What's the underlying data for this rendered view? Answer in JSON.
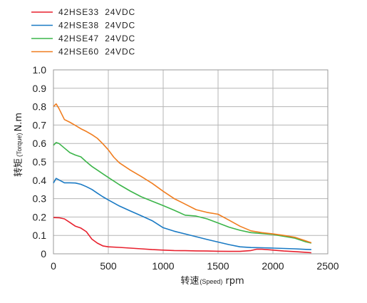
{
  "chart_data": {
    "type": "line",
    "xlabel": {
      "main": "转速",
      "sub": "(Speed)",
      "unit": "rpm"
    },
    "ylabel": {
      "main": "转矩",
      "sub": "(Torque)",
      "unit": "N.m"
    },
    "xlim": [
      0,
      2500
    ],
    "ylim": [
      0,
      1.0
    ],
    "xticks": [
      "0",
      "500",
      "1000",
      "1500",
      "2000",
      "2500"
    ],
    "xtick_values": [
      0,
      500,
      1000,
      1500,
      2000,
      2500
    ],
    "yticks": [
      "0",
      "0.1",
      "0.2",
      "0.3",
      "0.4",
      "0.5",
      "0.6",
      "0.7",
      "0.8",
      "0.9",
      "1.0"
    ],
    "ytick_values": [
      0,
      0.1,
      0.2,
      0.3,
      0.4,
      0.5,
      0.6,
      0.7,
      0.8,
      0.9,
      1.0
    ],
    "grid": true,
    "legend_position": "top-left, above plot",
    "series": [
      {
        "name": "42HSE33  24VDC",
        "color": "#e8212e",
        "points": [
          [
            0,
            0.197
          ],
          [
            50,
            0.196
          ],
          [
            100,
            0.19
          ],
          [
            150,
            0.17
          ],
          [
            200,
            0.15
          ],
          [
            250,
            0.14
          ],
          [
            300,
            0.12
          ],
          [
            350,
            0.08
          ],
          [
            400,
            0.058
          ],
          [
            450,
            0.043
          ],
          [
            500,
            0.038
          ],
          [
            600,
            0.035
          ],
          [
            700,
            0.031
          ],
          [
            800,
            0.027
          ],
          [
            900,
            0.023
          ],
          [
            1000,
            0.02
          ],
          [
            1100,
            0.018
          ],
          [
            1200,
            0.017
          ],
          [
            1300,
            0.016
          ],
          [
            1400,
            0.015
          ],
          [
            1500,
            0.014
          ],
          [
            1600,
            0.013
          ],
          [
            1700,
            0.013
          ],
          [
            1800,
            0.018
          ],
          [
            1850,
            0.025
          ],
          [
            1900,
            0.025
          ],
          [
            2000,
            0.02
          ],
          [
            2100,
            0.015
          ],
          [
            2200,
            0.012
          ],
          [
            2300,
            0.008
          ],
          [
            2350,
            0.006
          ]
        ]
      },
      {
        "name": "42HSE38  24VDC",
        "color": "#1a7ac4",
        "points": [
          [
            0,
            0.385
          ],
          [
            25,
            0.41
          ],
          [
            50,
            0.402
          ],
          [
            100,
            0.386
          ],
          [
            150,
            0.386
          ],
          [
            200,
            0.385
          ],
          [
            250,
            0.378
          ],
          [
            300,
            0.365
          ],
          [
            350,
            0.35
          ],
          [
            400,
            0.33
          ],
          [
            450,
            0.31
          ],
          [
            500,
            0.293
          ],
          [
            600,
            0.26
          ],
          [
            700,
            0.233
          ],
          [
            800,
            0.207
          ],
          [
            900,
            0.18
          ],
          [
            1000,
            0.142
          ],
          [
            1100,
            0.123
          ],
          [
            1200,
            0.108
          ],
          [
            1300,
            0.093
          ],
          [
            1400,
            0.078
          ],
          [
            1500,
            0.064
          ],
          [
            1600,
            0.05
          ],
          [
            1700,
            0.038
          ],
          [
            1800,
            0.034
          ],
          [
            1900,
            0.033
          ],
          [
            2000,
            0.031
          ],
          [
            2100,
            0.029
          ],
          [
            2200,
            0.027
          ],
          [
            2300,
            0.024
          ],
          [
            2350,
            0.023
          ]
        ]
      },
      {
        "name": "42HSE47  24VDC",
        "color": "#3cb54a",
        "points": [
          [
            0,
            0.59
          ],
          [
            25,
            0.605
          ],
          [
            50,
            0.6
          ],
          [
            100,
            0.575
          ],
          [
            150,
            0.55
          ],
          [
            200,
            0.537
          ],
          [
            250,
            0.527
          ],
          [
            300,
            0.5
          ],
          [
            350,
            0.475
          ],
          [
            400,
            0.455
          ],
          [
            450,
            0.435
          ],
          [
            500,
            0.415
          ],
          [
            600,
            0.376
          ],
          [
            700,
            0.341
          ],
          [
            800,
            0.31
          ],
          [
            900,
            0.286
          ],
          [
            1000,
            0.262
          ],
          [
            1100,
            0.237
          ],
          [
            1200,
            0.21
          ],
          [
            1300,
            0.205
          ],
          [
            1400,
            0.19
          ],
          [
            1500,
            0.168
          ],
          [
            1600,
            0.145
          ],
          [
            1700,
            0.128
          ],
          [
            1800,
            0.115
          ],
          [
            1900,
            0.11
          ],
          [
            2000,
            0.105
          ],
          [
            2100,
            0.095
          ],
          [
            2200,
            0.085
          ],
          [
            2300,
            0.065
          ],
          [
            2350,
            0.058
          ]
        ]
      },
      {
        "name": "42HSE60  24VDC",
        "color": "#f07d1f",
        "points": [
          [
            0,
            0.8
          ],
          [
            25,
            0.815
          ],
          [
            50,
            0.79
          ],
          [
            100,
            0.73
          ],
          [
            150,
            0.715
          ],
          [
            200,
            0.698
          ],
          [
            250,
            0.68
          ],
          [
            300,
            0.665
          ],
          [
            350,
            0.648
          ],
          [
            400,
            0.628
          ],
          [
            450,
            0.598
          ],
          [
            500,
            0.565
          ],
          [
            550,
            0.525
          ],
          [
            600,
            0.495
          ],
          [
            700,
            0.455
          ],
          [
            800,
            0.42
          ],
          [
            900,
            0.383
          ],
          [
            1000,
            0.34
          ],
          [
            1100,
            0.3
          ],
          [
            1200,
            0.27
          ],
          [
            1300,
            0.24
          ],
          [
            1400,
            0.225
          ],
          [
            1500,
            0.215
          ],
          [
            1600,
            0.183
          ],
          [
            1700,
            0.15
          ],
          [
            1800,
            0.125
          ],
          [
            1900,
            0.115
          ],
          [
            2000,
            0.108
          ],
          [
            2100,
            0.1
          ],
          [
            2200,
            0.09
          ],
          [
            2300,
            0.07
          ],
          [
            2350,
            0.06
          ]
        ]
      }
    ]
  }
}
